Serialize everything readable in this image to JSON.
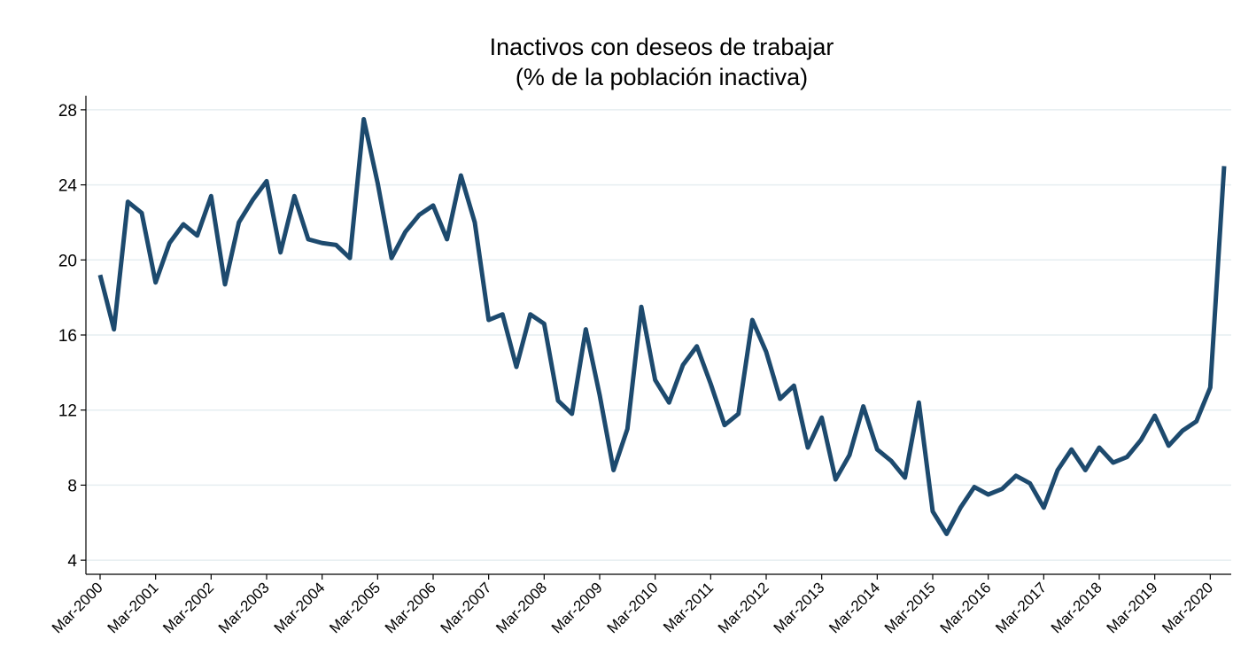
{
  "chart_data": {
    "type": "line",
    "title": [
      "Inactivos con deseos de trabajar",
      "(% de la población inactiva)"
    ],
    "categories": [
      "Mar-2000",
      null,
      null,
      null,
      "Mar-2001",
      null,
      null,
      null,
      "Mar-2002",
      null,
      null,
      null,
      "Mar-2003",
      null,
      null,
      null,
      "Mar-2004",
      null,
      null,
      null,
      "Mar-2005",
      null,
      null,
      null,
      "Mar-2006",
      null,
      null,
      null,
      "Mar-2007",
      null,
      null,
      null,
      "Mar-2008",
      null,
      null,
      null,
      "Mar-2009",
      null,
      null,
      null,
      "Mar-2010",
      null,
      null,
      null,
      "Mar-2011",
      null,
      null,
      null,
      "Mar-2012",
      null,
      null,
      null,
      "Mar-2013",
      null,
      null,
      null,
      "Mar-2014",
      null,
      null,
      null,
      "Mar-2015",
      null,
      null,
      null,
      "Mar-2016",
      null,
      null,
      null,
      "Mar-2017",
      null,
      null,
      null,
      "Mar-2018",
      null,
      null,
      null,
      "Mar-2019",
      null,
      null,
      null,
      "Mar-2020",
      null
    ],
    "series": [
      {
        "color": "#1d4a6e",
        "values": [
          19.2,
          16.3,
          23.1,
          22.5,
          18.8,
          20.9,
          21.9,
          21.3,
          23.4,
          18.7,
          22.0,
          23.2,
          24.2,
          20.4,
          23.4,
          21.1,
          20.9,
          20.8,
          20.1,
          27.5,
          24.1,
          20.1,
          21.5,
          22.4,
          22.9,
          21.1,
          24.5,
          22.0,
          16.8,
          17.1,
          14.3,
          17.1,
          16.6,
          12.5,
          11.8,
          16.3,
          12.8,
          8.8,
          11.0,
          17.5,
          13.6,
          12.4,
          14.4,
          15.4,
          13.4,
          11.2,
          11.8,
          16.8,
          15.1,
          12.6,
          13.3,
          10.0,
          11.6,
          8.3,
          9.6,
          12.2,
          9.9,
          9.3,
          8.4,
          12.4,
          6.6,
          5.4,
          6.8,
          7.9,
          7.5,
          7.8,
          8.5,
          8.1,
          6.8,
          8.8,
          9.9,
          8.8,
          10.0,
          9.2,
          9.5,
          10.4,
          11.7,
          10.1,
          10.9,
          11.4,
          13.2,
          25.0
        ]
      }
    ],
    "ylim": [
      3.25,
      28.75
    ],
    "yticks": [
      4,
      8,
      12,
      16,
      20,
      24,
      28
    ],
    "grid": true
  }
}
